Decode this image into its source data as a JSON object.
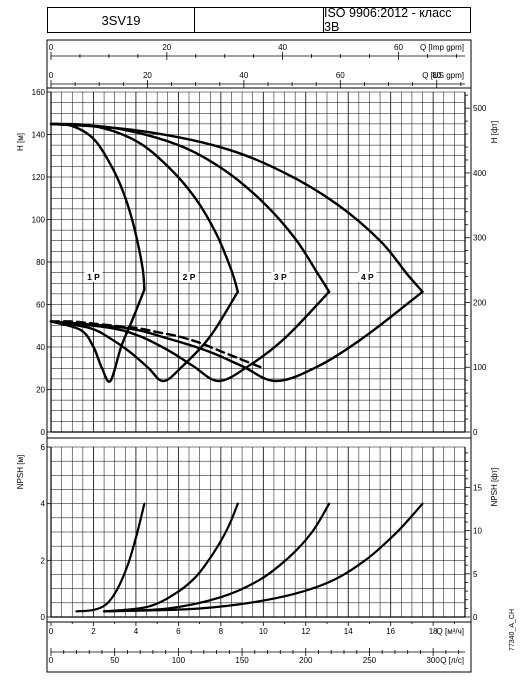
{
  "header": {
    "model": "3SV19",
    "standard": "ISO 9906:2012 - класс 3B"
  },
  "side_code": "77340_A_CH",
  "chart_data": [
    {
      "type": "line",
      "title": "",
      "ylabel": "H [м]",
      "ylabel_right": "H [фт]",
      "ylim": [
        0,
        160
      ],
      "y_ticks": [
        0,
        20,
        40,
        60,
        80,
        100,
        120,
        140,
        160
      ],
      "y_right_ticks": [
        0,
        100,
        200,
        300,
        400,
        500
      ],
      "x_axis_top1": {
        "label": "Q [Imp gpm]",
        "ticks": [
          0,
          20,
          40,
          60
        ]
      },
      "x_axis_top2": {
        "label": "Q [US gpm]",
        "ticks": [
          0,
          20,
          40,
          60,
          80
        ]
      },
      "xlim_m3h": [
        0,
        19.5
      ],
      "grid": true,
      "series": [
        {
          "name": "1 P",
          "style": "solid",
          "x": [
            0,
            1.0,
            2.0,
            2.8,
            3.4,
            3.9,
            4.3,
            4.4
          ],
          "y": [
            145,
            144,
            138,
            126,
            113,
            97,
            78,
            67
          ]
        },
        {
          "name": "2 P",
          "style": "solid",
          "x": [
            0,
            2.0,
            4.0,
            5.5,
            6.8,
            7.8,
            8.5,
            8.8
          ],
          "y": [
            145,
            144,
            137,
            125,
            110,
            93,
            76,
            66
          ]
        },
        {
          "name": "3 P",
          "style": "solid",
          "x": [
            0,
            3.0,
            6.0,
            8.2,
            10.0,
            11.5,
            12.6,
            13.1
          ],
          "y": [
            145,
            143,
            135,
            123,
            108,
            91,
            74,
            66
          ]
        },
        {
          "name": "4 P",
          "style": "solid",
          "x": [
            0,
            4.0,
            8.0,
            11.0,
            13.5,
            15.5,
            16.8,
            17.5
          ],
          "y": [
            145,
            142,
            134,
            122,
            107,
            90,
            74,
            66
          ]
        },
        {
          "name": "",
          "style": "solid",
          "x": [
            4.4,
            3.8,
            3.3,
            2.8,
            2.4,
            2.0,
            1.4,
            0
          ],
          "y": [
            67,
            52,
            40,
            24,
            30,
            40,
            48,
            52
          ]
        },
        {
          "name": "",
          "style": "solid",
          "x": [
            8.8,
            7.5,
            6.2,
            5.3,
            4.6,
            3.8,
            2.8,
            1.8,
            0
          ],
          "y": [
            66,
            45,
            31,
            24,
            30,
            37,
            44,
            49,
            52
          ]
        },
        {
          "name": "",
          "style": "solid",
          "x": [
            13.1,
            11.0,
            9.3,
            7.9,
            6.7,
            5.6,
            4.2,
            2.8,
            0
          ],
          "y": [
            66,
            44,
            31,
            24,
            31,
            38,
            45,
            49,
            52
          ]
        },
        {
          "name": "",
          "style": "solid",
          "x": [
            17.5,
            14.8,
            12.6,
            10.6,
            9.0,
            7.4,
            5.5,
            3.5,
            0
          ],
          "y": [
            66,
            45,
            31,
            24,
            31,
            38,
            44,
            49,
            52
          ]
        },
        {
          "name": "",
          "style": "dashed",
          "x": [
            0,
            1.0,
            2.0,
            3.0,
            4.0,
            5.0,
            6.0,
            7.0,
            8.0,
            9.0,
            10.0
          ],
          "y": [
            52,
            52,
            51,
            50,
            49,
            47,
            45,
            42,
            38,
            34,
            30
          ]
        }
      ],
      "labels": [
        {
          "text": "1 P",
          "x": 2.0,
          "y": 72
        },
        {
          "text": "2 P",
          "x": 6.5,
          "y": 72
        },
        {
          "text": "3 P",
          "x": 10.8,
          "y": 72
        },
        {
          "text": "4 P",
          "x": 14.9,
          "y": 72
        }
      ]
    },
    {
      "type": "line",
      "title": "",
      "ylabel": "NPSH [м]",
      "ylabel_right": "NPSH [фт]",
      "ylim": [
        0,
        6
      ],
      "y_ticks": [
        0,
        2,
        4,
        6
      ],
      "y_right_ticks": [
        0,
        5,
        10,
        15
      ],
      "x_axis_bottom1": {
        "label": "Q [м³/ч]",
        "ticks": [
          0,
          2,
          4,
          6,
          8,
          10,
          12,
          14,
          16,
          18
        ]
      },
      "x_axis_bottom2": {
        "label": "Q [л/с]",
        "ticks": [
          0,
          50,
          100,
          150,
          200,
          250,
          300
        ]
      },
      "xlim_m3h": [
        0,
        19.5
      ],
      "grid": true,
      "series": [
        {
          "name": "",
          "style": "solid",
          "x": [
            1.2,
            2.0,
            2.6,
            3.1,
            3.6,
            4.0,
            4.4
          ],
          "y": [
            0.2,
            0.25,
            0.45,
            0.95,
            1.8,
            2.8,
            4.0
          ]
        },
        {
          "name": "",
          "style": "solid",
          "x": [
            2.5,
            4.5,
            5.8,
            6.8,
            7.6,
            8.3,
            8.8
          ],
          "y": [
            0.2,
            0.35,
            0.8,
            1.4,
            2.2,
            3.1,
            4.0
          ]
        },
        {
          "name": "",
          "style": "solid",
          "x": [
            2.5,
            5.5,
            8.0,
            9.8,
            11.2,
            12.3,
            13.1
          ],
          "y": [
            0.2,
            0.3,
            0.7,
            1.3,
            2.1,
            3.0,
            4.0
          ]
        },
        {
          "name": "",
          "style": "solid",
          "x": [
            2.5,
            7.0,
            10.5,
            13.0,
            14.8,
            16.3,
            17.5
          ],
          "y": [
            0.2,
            0.3,
            0.65,
            1.2,
            2.0,
            3.0,
            4.0
          ]
        }
      ]
    }
  ]
}
